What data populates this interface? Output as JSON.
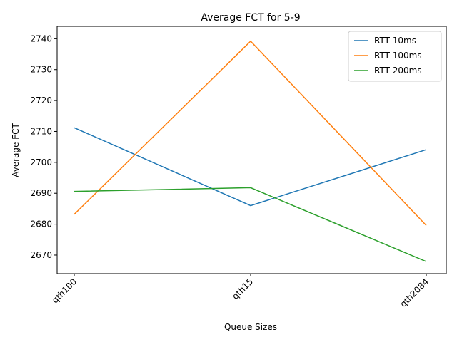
{
  "chart_data": {
    "type": "line",
    "title": "Average FCT for 5-9",
    "xlabel": "Queue Sizes",
    "ylabel": "Average FCT",
    "categories": [
      "qth100",
      "qth15",
      "qth2084"
    ],
    "ylim": [
      2664,
      2744
    ],
    "yticks": [
      2670,
      2680,
      2690,
      2700,
      2710,
      2720,
      2730,
      2740
    ],
    "grid": false,
    "legend_position": "top-right",
    "series": [
      {
        "name": "RTT 10ms",
        "color": "#1f77b4",
        "values": [
          2711.2,
          2686.0,
          2704.1
        ]
      },
      {
        "name": "RTT 100ms",
        "color": "#ff7f0e",
        "values": [
          2683.2,
          2739.2,
          2679.6
        ]
      },
      {
        "name": "RTT 200ms",
        "color": "#2ca02c",
        "values": [
          2690.6,
          2691.8,
          2667.9
        ]
      }
    ]
  }
}
